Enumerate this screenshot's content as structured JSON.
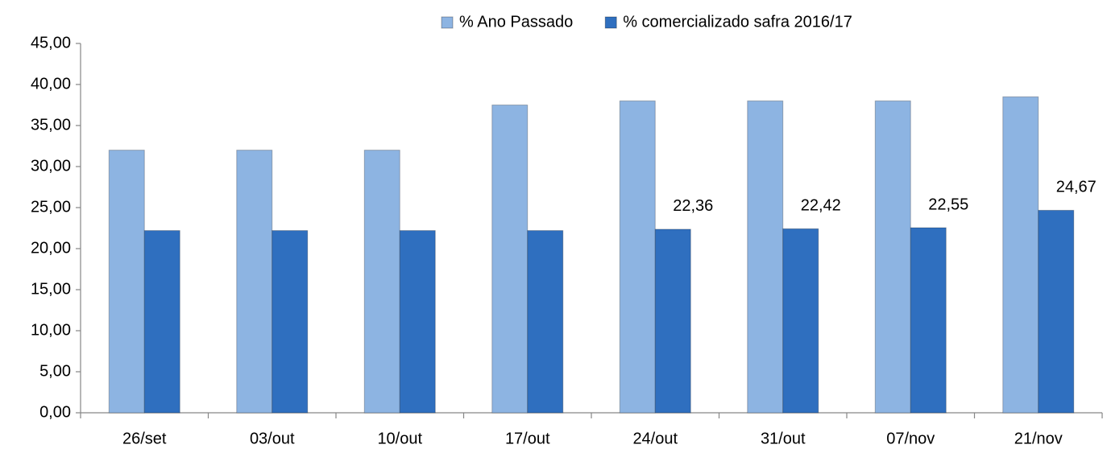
{
  "chart_data": {
    "type": "bar",
    "categories": [
      "26/set",
      "03/out",
      "10/out",
      "17/out",
      "24/out",
      "31/out",
      "07/nov",
      "21/nov"
    ],
    "series": [
      {
        "name": "% Ano Passado",
        "color": "#8db4e2",
        "values": [
          32,
          32,
          32,
          37.5,
          38,
          38,
          38,
          38.5
        ]
      },
      {
        "name": "% comercializado safra 2016/17",
        "color": "#2f6fbf",
        "values": [
          22.2,
          22.2,
          22.2,
          22.2,
          22.36,
          22.42,
          22.55,
          24.67
        ],
        "value_labels": [
          null,
          null,
          null,
          null,
          "22,36",
          "22,42",
          "22,55",
          "24,67"
        ]
      }
    ],
    "ylim": [
      0,
      45
    ],
    "yticks": [
      {
        "value": 0,
        "label": "0,00"
      },
      {
        "value": 5,
        "label": "5,00"
      },
      {
        "value": 10,
        "label": "10,00"
      },
      {
        "value": 15,
        "label": "15,00"
      },
      {
        "value": 20,
        "label": "20,00"
      },
      {
        "value": 25,
        "label": "25,00"
      },
      {
        "value": 30,
        "label": "30,00"
      },
      {
        "value": 35,
        "label": "35,00"
      },
      {
        "value": 40,
        "label": "40,00"
      },
      {
        "value": 45,
        "label": "45,00"
      }
    ],
    "grid": false,
    "legend": "top"
  }
}
